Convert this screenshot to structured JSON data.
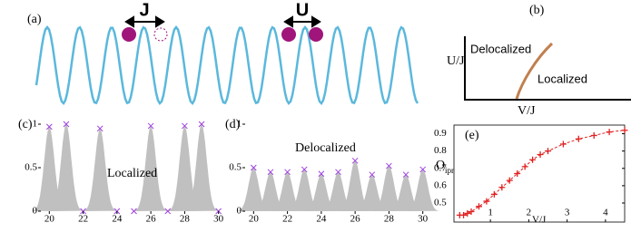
{
  "diagram_a": {
    "label": "(a)",
    "hop": "J",
    "interaction": "U"
  },
  "diagram_b": {
    "label": "(b)",
    "y_label": "U/J",
    "x_label": "V/J",
    "region_upper": "Delocalized",
    "region_lower": "Localized"
  },
  "chart_data": [
    {
      "type": "peaks",
      "label": "(c)",
      "annotation": "Localized",
      "color": "#c0c0c0",
      "marker_color": "#a040e0",
      "x": [
        20,
        21,
        22,
        23,
        24,
        25,
        26,
        27,
        28,
        29,
        30
      ],
      "values": [
        0.97,
        1.0,
        0.0,
        0.95,
        0.0,
        0.0,
        0.98,
        0.0,
        0.98,
        1.0,
        0.0
      ],
      "xlim": [
        19.5,
        30.5
      ],
      "ylim": [
        0,
        1
      ],
      "xticks": [
        20,
        22,
        24,
        26,
        28,
        30
      ],
      "yticks": [
        0,
        0.5,
        1
      ]
    },
    {
      "type": "peaks",
      "label": "(d)",
      "annotation": "Delocalized",
      "color": "#c0c0c0",
      "marker_color": "#a040e0",
      "x": [
        20,
        21,
        22,
        23,
        24,
        25,
        26,
        27,
        28,
        29,
        30
      ],
      "values": [
        0.5,
        0.45,
        0.45,
        0.48,
        0.43,
        0.45,
        0.58,
        0.42,
        0.52,
        0.42,
        0.48
      ],
      "xlim": [
        19.5,
        30.5
      ],
      "ylim": [
        0,
        1
      ],
      "xticks": [
        20,
        22,
        24,
        26,
        28,
        30
      ],
      "yticks": [
        0,
        0.5,
        1
      ]
    },
    {
      "type": "line",
      "label": "(e)",
      "x_label": "V/J",
      "y_label": "O",
      "y_label_sub": "ipr",
      "color": "#e02020",
      "x": [
        0.2,
        0.3,
        0.4,
        0.5,
        0.7,
        0.9,
        1.1,
        1.3,
        1.5,
        1.7,
        1.9,
        2.1,
        2.3,
        2.5,
        2.9,
        3.3,
        3.7,
        4.1,
        4.5
      ],
      "values": [
        0.43,
        0.43,
        0.44,
        0.45,
        0.48,
        0.51,
        0.55,
        0.59,
        0.63,
        0.67,
        0.71,
        0.75,
        0.78,
        0.8,
        0.84,
        0.87,
        0.89,
        0.91,
        0.92
      ],
      "xlim": [
        0.05,
        4.5
      ],
      "ylim": [
        0.39,
        0.95
      ],
      "xticks": [
        1,
        2,
        3,
        4
      ],
      "yticks": [
        0.5,
        0.6,
        0.7,
        0.8,
        0.9
      ]
    }
  ]
}
